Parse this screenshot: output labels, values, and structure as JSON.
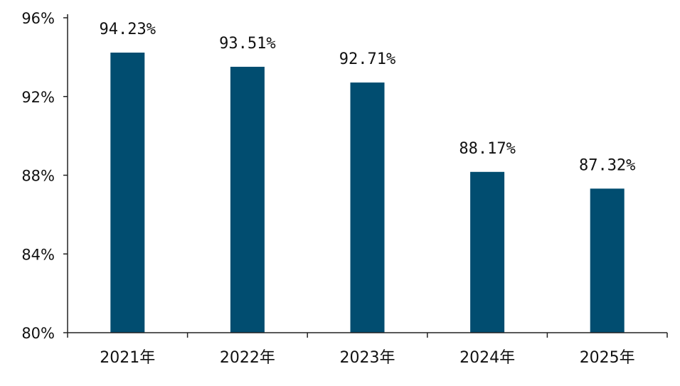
{
  "chart_data": {
    "type": "bar",
    "categories": [
      "2021年",
      "2022年",
      "2023年",
      "2024年",
      "2025年"
    ],
    "values": [
      94.23,
      93.51,
      92.71,
      88.17,
      87.32
    ],
    "data_labels": [
      "94.23%",
      "93.51%",
      "92.71%",
      "88.17%",
      "87.32%"
    ],
    "title": "",
    "xlabel": "",
    "ylabel": "",
    "ylim": [
      80,
      96
    ],
    "yticks": [
      80,
      84,
      88,
      92,
      96
    ],
    "ytick_labels": [
      "80%",
      "84%",
      "88%",
      "92%",
      "96%"
    ],
    "grid": false,
    "legend": "none",
    "bar_color": "#014D70",
    "axis_color": "#222222"
  }
}
